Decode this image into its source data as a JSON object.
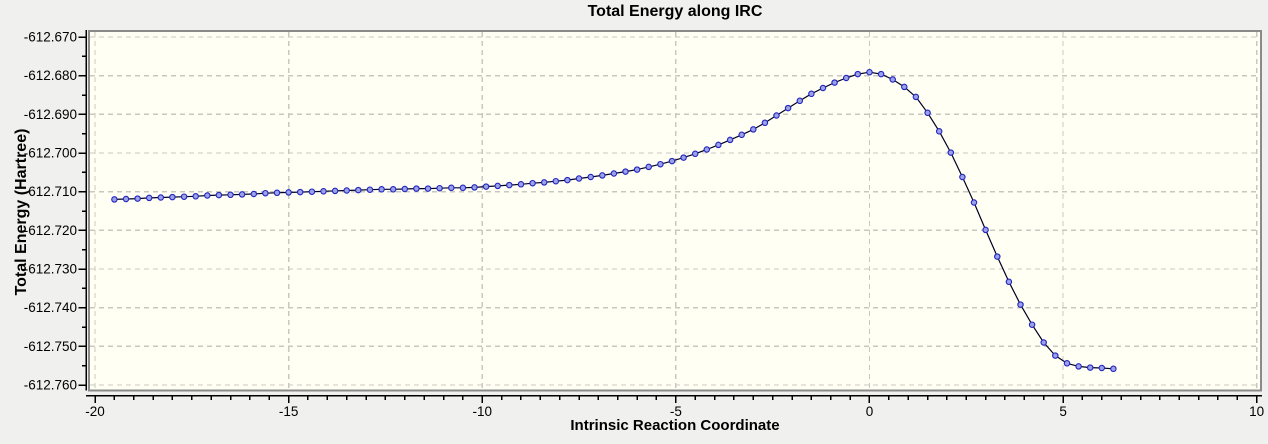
{
  "figure": {
    "title": "Total Energy along IRC",
    "xlabel": "Intrinsic Reaction Coordinate",
    "ylabel": "Total Energy (Hartree)"
  },
  "chart_data": {
    "type": "line",
    "title": "Total Energy along IRC",
    "xlabel": "Intrinsic Reaction Coordinate",
    "ylabel": "Total Energy (Hartree)",
    "xlim": [
      -20,
      10
    ],
    "ylim": [
      -612.76,
      -612.67
    ],
    "x_ticks": [
      -20,
      -15,
      -10,
      -5,
      0,
      5,
      10
    ],
    "x_tick_labels": [
      "-20",
      "-15",
      "-10",
      "-5",
      "0",
      "5",
      "10"
    ],
    "x_minor_tick_step": 0.5,
    "y_ticks": [
      -612.67,
      -612.68,
      -612.69,
      -612.7,
      -612.71,
      -612.72,
      -612.73,
      -612.74,
      -612.75,
      -612.76
    ],
    "y_tick_labels": [
      "-612.670",
      "-612.680",
      "-612.690",
      "-612.700",
      "-612.710",
      "-612.720",
      "-612.730",
      "-612.740",
      "-612.750",
      "-612.760"
    ],
    "y_minor_tick_step": 0.005,
    "grid": "dashed",
    "legend": "none",
    "marker": "circle",
    "series": [
      {
        "name": "Total Energy",
        "points": [
          [
            -19.5,
            -612.712
          ],
          [
            -19.2,
            -612.7119
          ],
          [
            -18.9,
            -612.7118
          ],
          [
            -18.6,
            -612.7116
          ],
          [
            -18.3,
            -612.7115
          ],
          [
            -18.0,
            -612.7114
          ],
          [
            -17.7,
            -612.7113
          ],
          [
            -17.4,
            -612.7112
          ],
          [
            -17.1,
            -612.711
          ],
          [
            -16.8,
            -612.7109
          ],
          [
            -16.5,
            -612.7108
          ],
          [
            -16.2,
            -612.7107
          ],
          [
            -15.9,
            -612.7106
          ],
          [
            -15.6,
            -612.7104
          ],
          [
            -15.3,
            -612.7103
          ],
          [
            -15.0,
            -612.7102
          ],
          [
            -14.7,
            -612.7101
          ],
          [
            -14.4,
            -612.71
          ],
          [
            -14.1,
            -612.7099
          ],
          [
            -13.8,
            -612.7098
          ],
          [
            -13.5,
            -612.7097
          ],
          [
            -13.2,
            -612.7096
          ],
          [
            -12.9,
            -612.7095
          ],
          [
            -12.6,
            -612.7094
          ],
          [
            -12.3,
            -612.7094
          ],
          [
            -12.0,
            -612.7093
          ],
          [
            -11.7,
            -612.7092
          ],
          [
            -11.4,
            -612.7092
          ],
          [
            -11.1,
            -612.7091
          ],
          [
            -10.8,
            -612.709
          ],
          [
            -10.5,
            -612.709
          ],
          [
            -10.2,
            -612.7089
          ],
          [
            -9.9,
            -612.7087
          ],
          [
            -9.6,
            -612.7085
          ],
          [
            -9.3,
            -612.7083
          ],
          [
            -9.0,
            -612.7081
          ],
          [
            -8.7,
            -612.7078
          ],
          [
            -8.4,
            -612.7076
          ],
          [
            -8.1,
            -612.7073
          ],
          [
            -7.8,
            -612.707
          ],
          [
            -7.5,
            -612.7066
          ],
          [
            -7.2,
            -612.7062
          ],
          [
            -6.9,
            -612.7058
          ],
          [
            -6.6,
            -612.7053
          ],
          [
            -6.3,
            -612.7048
          ],
          [
            -6.0,
            -612.7043
          ],
          [
            -5.7,
            -612.7036
          ],
          [
            -5.4,
            -612.7029
          ],
          [
            -5.1,
            -612.7021
          ],
          [
            -4.8,
            -612.7012
          ],
          [
            -4.5,
            -612.7002
          ],
          [
            -4.2,
            -612.6991
          ],
          [
            -3.9,
            -612.6979
          ],
          [
            -3.6,
            -612.6966
          ],
          [
            -3.3,
            -612.6953
          ],
          [
            -3.0,
            -612.6939
          ],
          [
            -2.7,
            -612.6922
          ],
          [
            -2.4,
            -612.6903
          ],
          [
            -2.1,
            -612.6884
          ],
          [
            -1.8,
            -612.6865
          ],
          [
            -1.5,
            -612.6847
          ],
          [
            -1.2,
            -612.6832
          ],
          [
            -0.9,
            -612.6818
          ],
          [
            -0.6,
            -612.6806
          ],
          [
            -0.3,
            -612.6796
          ],
          [
            0.0,
            -612.6791
          ],
          [
            0.3,
            -612.6796
          ],
          [
            0.6,
            -612.681
          ],
          [
            0.9,
            -612.6829
          ],
          [
            1.2,
            -612.6855
          ],
          [
            1.5,
            -612.6896
          ],
          [
            1.8,
            -612.6944
          ],
          [
            2.1,
            -612.6999
          ],
          [
            2.4,
            -612.7062
          ],
          [
            2.7,
            -612.7128
          ],
          [
            3.0,
            -612.7199
          ],
          [
            3.3,
            -612.7268
          ],
          [
            3.6,
            -612.7333
          ],
          [
            3.9,
            -612.7392
          ],
          [
            4.2,
            -612.7444
          ],
          [
            4.5,
            -612.749
          ],
          [
            4.8,
            -612.7524
          ],
          [
            5.1,
            -612.7544
          ],
          [
            5.4,
            -612.7552
          ],
          [
            5.7,
            -612.7555
          ],
          [
            6.0,
            -612.7556
          ],
          [
            6.3,
            -612.7558
          ]
        ]
      }
    ]
  },
  "colors": {
    "figure_bg": "#f0f0ee",
    "plot_bg": "#fffff4",
    "frame": "#8a8a8a",
    "grid": "#c8c8c2",
    "axis": "#000000",
    "line": "#000022",
    "marker_fill": "#9aa2ea",
    "marker_stroke": "#2424bd",
    "text": "#000000"
  }
}
